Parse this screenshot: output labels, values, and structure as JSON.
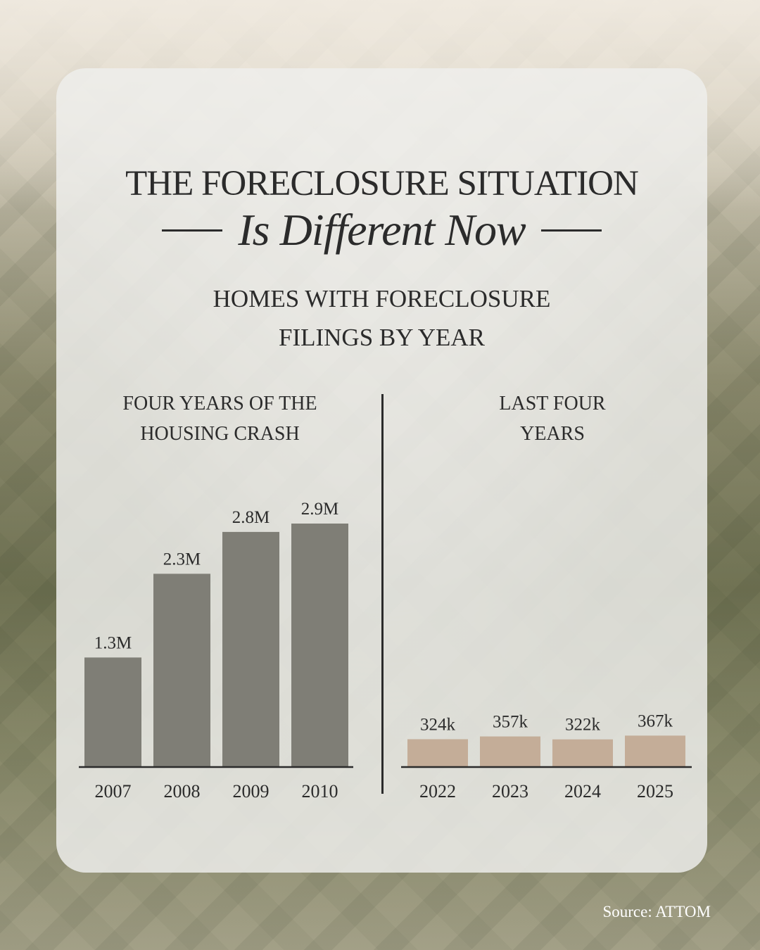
{
  "headline": {
    "line1": "THE FORECLOSURE SITUATION",
    "line2": "Is Different Now"
  },
  "subtitle": {
    "line1": "HOMES WITH FORECLOSURE",
    "line2": "FILINGS BY YEAR"
  },
  "source": "Source: ATTOM",
  "colors": {
    "crash_bar": "#7f7e76",
    "recent_bar": "#c4ad98",
    "text": "#2b2b2b"
  },
  "chart_data": [
    {
      "type": "bar",
      "title": "FOUR YEARS OF THE HOUSING CRASH",
      "title_lines": [
        "FOUR YEARS OF THE",
        "HOUSING CRASH"
      ],
      "categories": [
        "2007",
        "2008",
        "2009",
        "2010"
      ],
      "values": [
        1300000,
        2300000,
        2800000,
        2900000
      ],
      "labels": [
        "1.3M",
        "2.3M",
        "2.8M",
        "2.9M"
      ],
      "ylim": [
        0,
        2900000
      ],
      "grid": false,
      "color": "#7f7e76"
    },
    {
      "type": "bar",
      "title": "LAST FOUR YEARS",
      "title_lines": [
        "LAST FOUR",
        "YEARS"
      ],
      "categories": [
        "2022",
        "2023",
        "2024",
        "2025"
      ],
      "values": [
        324000,
        357000,
        322000,
        367000
      ],
      "labels": [
        "324k",
        "357k",
        "322k",
        "367k"
      ],
      "ylim": [
        0,
        2900000
      ],
      "grid": false,
      "color": "#c4ad98"
    }
  ]
}
